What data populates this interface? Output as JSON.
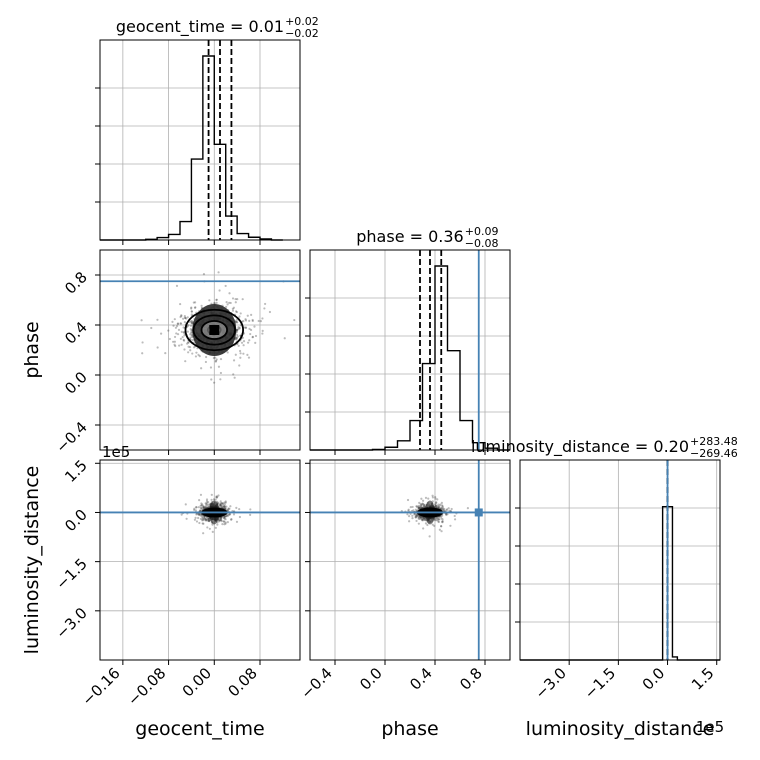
{
  "chart_data": {
    "type": "corner",
    "parameters": [
      "geocent_time",
      "phase",
      "luminosity_distance"
    ],
    "truths": {
      "phase": 0.75,
      "luminosity_distance": 0
    },
    "grid": true,
    "diagonal": [
      {
        "name": "geocent_time",
        "title_main": "geocent_time = 0.01",
        "title_sup": "+0.02",
        "title_sub": "−0.02",
        "quantiles": [
          -0.01,
          0.01,
          0.03
        ],
        "xlim": [
          -0.2,
          0.15
        ],
        "ylim": [
          0,
          1
        ],
        "bins": [
          -0.2,
          -0.18,
          -0.16,
          -0.14,
          -0.12,
          -0.1,
          -0.08,
          -0.06,
          -0.04,
          -0.02,
          0.0,
          0.02,
          0.04,
          0.06,
          0.08,
          0.1,
          0.12
        ],
        "values": [
          0,
          0,
          0,
          0,
          0.004,
          0.013,
          0.03,
          0.1,
          0.44,
          1.0,
          0.52,
          0.13,
          0.035,
          0.015,
          0.006,
          0
        ]
      },
      {
        "name": "phase",
        "title_main": "phase = 0.36",
        "title_sup": "+0.09",
        "title_sub": "−0.08",
        "quantiles": [
          0.28,
          0.36,
          0.45
        ],
        "xlim": [
          -0.6,
          1.0
        ],
        "ylim": [
          0,
          1
        ],
        "truth": 0.75,
        "bins": [
          -0.6,
          -0.5,
          -0.4,
          -0.3,
          -0.2,
          -0.1,
          0.0,
          0.1,
          0.2,
          0.3,
          0.4,
          0.5,
          0.6,
          0.7,
          0.8,
          0.9,
          1.0
        ],
        "values": [
          0,
          0,
          0,
          0,
          0,
          0.003,
          0.015,
          0.05,
          0.16,
          0.47,
          1.0,
          0.54,
          0.16,
          0.04,
          0.01,
          0
        ]
      },
      {
        "name": "luminosity_distance",
        "title_main": "luminosity_distance = 0.20",
        "title_sup": "+283.48",
        "title_sub": "−269.46",
        "quantiles": [
          -269.26,
          0.2,
          283.68
        ],
        "xlim": [
          -450000,
          160000
        ],
        "ylim": [
          0,
          1.2
        ],
        "truth": 0,
        "bins": [
          -450000,
          -30000,
          -15000,
          0,
          15000,
          30000,
          160000
        ],
        "values": [
          0,
          0,
          1.0,
          1.0,
          0.02,
          0
        ]
      }
    ],
    "scatter_panels": [
      {
        "x": "geocent_time",
        "y": "phase",
        "center": [
          0.0,
          0.36
        ],
        "spread": [
          0.028,
          0.09
        ],
        "contour_levels": [
          0.4,
          0.8,
          1.3,
          1.8
        ]
      },
      {
        "x": "geocent_time",
        "y": "luminosity_distance",
        "center": [
          0.0,
          0.0
        ],
        "spread": [
          0.012,
          12000
        ]
      },
      {
        "x": "phase",
        "y": "luminosity_distance",
        "center": [
          0.36,
          0.0
        ],
        "spread": [
          0.05,
          10000
        ]
      }
    ],
    "axes": {
      "geocent_time": {
        "ticks": [
          -0.16,
          -0.08,
          0.0,
          0.08
        ],
        "tick_labels": [
          "−0.16",
          "−0.08",
          "0.00",
          "0.08"
        ],
        "label": "geocent_time"
      },
      "phase": {
        "ticks": [
          -0.4,
          0.0,
          0.4,
          0.8
        ],
        "tick_labels": [
          "−0.4",
          "0.0",
          "0.4",
          "0.8"
        ],
        "label": "phase"
      },
      "luminosity_distance": {
        "ticks": [
          -300000,
          -150000,
          0,
          150000
        ],
        "tick_labels": [
          "−3.0",
          "−1.5",
          "0.0",
          "1.5"
        ],
        "label": "luminosity_distance",
        "offset_text": "1e5"
      }
    },
    "colors": {
      "truth": "#4682b4",
      "hist": "#000000",
      "grid": "#b0b0b0",
      "points": "#404040"
    }
  }
}
